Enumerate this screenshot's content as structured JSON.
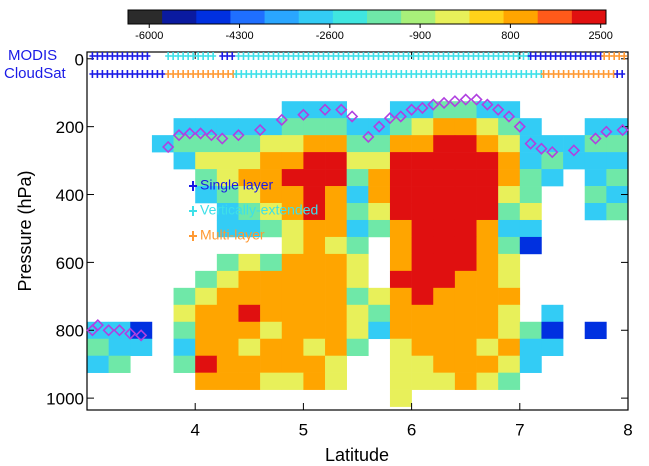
{
  "chart_data": {
    "type": "heatmap",
    "xlabel": "Latitude",
    "ylabel": "Pressure (hPa)",
    "xlim": [
      3,
      8
    ],
    "xticks": [
      4,
      5,
      6,
      7,
      8
    ],
    "ylim": [
      1035,
      -20
    ],
    "yticks": [
      0,
      200,
      400,
      600,
      800,
      1000
    ],
    "x": [
      3.1,
      3.3,
      3.5,
      3.7,
      3.9,
      4.1,
      4.3,
      4.5,
      4.7,
      4.9,
      5.1,
      5.3,
      5.5,
      5.7,
      5.9,
      6.1,
      6.3,
      6.5,
      6.7,
      6.9,
      7.1,
      7.3,
      7.5,
      7.7,
      7.9
    ],
    "y": [
      100,
      150,
      200,
      250,
      300,
      350,
      400,
      450,
      500,
      550,
      600,
      650,
      700,
      750,
      800,
      850,
      900,
      950,
      1000
    ],
    "z": [
      [
        null,
        null,
        null,
        null,
        null,
        null,
        null,
        null,
        null,
        null,
        null,
        null,
        null,
        null,
        null,
        null,
        null,
        null,
        null,
        null,
        null,
        null,
        null,
        null,
        null
      ],
      [
        null,
        null,
        null,
        null,
        null,
        null,
        null,
        null,
        null,
        -2800,
        -2800,
        -2800,
        null,
        null,
        -2800,
        -2800,
        -1600,
        -1600,
        -2800,
        -2800,
        null,
        null,
        null,
        null,
        null
      ],
      [
        null,
        null,
        null,
        null,
        -2800,
        -2800,
        -2800,
        -2800,
        -2800,
        -1600,
        -1600,
        -1600,
        -2800,
        -2800,
        -1600,
        -400,
        900,
        900,
        -400,
        -1600,
        -2800,
        null,
        null,
        -2800,
        -2800
      ],
      [
        null,
        null,
        null,
        -2800,
        -1600,
        -1600,
        -1600,
        -1600,
        -400,
        -400,
        900,
        900,
        -1600,
        -1600,
        900,
        900,
        2000,
        2000,
        900,
        -400,
        -2800,
        -2800,
        -2800,
        -1600,
        -1600
      ],
      [
        null,
        null,
        null,
        null,
        -2800,
        -400,
        -400,
        -400,
        900,
        900,
        2000,
        2000,
        -400,
        -400,
        2000,
        2000,
        2000,
        2000,
        2000,
        900,
        -2800,
        -1600,
        -2800,
        -2800,
        -2800
      ],
      [
        null,
        null,
        null,
        null,
        null,
        -1600,
        -400,
        900,
        900,
        2000,
        2000,
        2000,
        -1600,
        900,
        2000,
        2000,
        2000,
        2000,
        2000,
        900,
        -1600,
        -2800,
        null,
        -2800,
        -1600
      ],
      [
        null,
        null,
        null,
        null,
        null,
        -2800,
        -1600,
        -400,
        900,
        900,
        2000,
        900,
        -2800,
        900,
        2000,
        2000,
        2000,
        2000,
        2000,
        -400,
        -1600,
        null,
        null,
        -1600,
        -2800
      ],
      [
        null,
        null,
        null,
        null,
        null,
        null,
        -2800,
        -1600,
        -400,
        900,
        2000,
        900,
        -1600,
        -400,
        2000,
        2000,
        2000,
        2000,
        2000,
        -1600,
        -400,
        null,
        null,
        -2800,
        -1600
      ],
      [
        null,
        null,
        null,
        null,
        null,
        null,
        -2800,
        -2800,
        -1600,
        -400,
        900,
        900,
        -2800,
        -1600,
        900,
        2000,
        2000,
        2000,
        900,
        -2800,
        -2800,
        null,
        null,
        null,
        null
      ],
      [
        null,
        null,
        null,
        null,
        null,
        null,
        null,
        null,
        null,
        -400,
        900,
        -400,
        -1600,
        null,
        900,
        2000,
        2000,
        2000,
        900,
        -1600,
        -4500,
        null,
        null,
        null,
        null
      ],
      [
        null,
        null,
        null,
        null,
        null,
        null,
        -1600,
        -400,
        -1600,
        900,
        900,
        900,
        -400,
        null,
        900,
        2000,
        2000,
        2000,
        900,
        -400,
        null,
        null,
        null,
        null,
        null
      ],
      [
        null,
        null,
        null,
        null,
        null,
        -1600,
        -400,
        900,
        900,
        900,
        900,
        900,
        -400,
        null,
        2000,
        2000,
        2000,
        900,
        900,
        -400,
        null,
        null,
        null,
        null,
        null
      ],
      [
        null,
        null,
        null,
        null,
        -1600,
        -400,
        900,
        900,
        900,
        900,
        900,
        900,
        -1600,
        -400,
        900,
        2000,
        900,
        900,
        900,
        900,
        null,
        null,
        null,
        null,
        null
      ],
      [
        null,
        null,
        null,
        null,
        -400,
        900,
        900,
        2000,
        900,
        900,
        900,
        900,
        -400,
        -1600,
        900,
        900,
        900,
        900,
        900,
        -400,
        null,
        -2800,
        null,
        null,
        null
      ],
      [
        -2800,
        -2800,
        -4500,
        null,
        -1600,
        900,
        900,
        900,
        -400,
        900,
        900,
        900,
        -400,
        -2800,
        900,
        900,
        900,
        900,
        900,
        -400,
        -1600,
        -4500,
        null,
        -4500,
        null
      ],
      [
        -1600,
        -2800,
        -2800,
        null,
        -2800,
        900,
        900,
        -400,
        900,
        900,
        -400,
        900,
        -1600,
        null,
        -400,
        900,
        900,
        900,
        -400,
        900,
        -2800,
        -2800,
        null,
        null,
        null
      ],
      [
        -2800,
        -1600,
        null,
        null,
        -1600,
        2000,
        900,
        900,
        900,
        900,
        900,
        -400,
        null,
        null,
        -400,
        -400,
        900,
        900,
        900,
        -400,
        -2800,
        null,
        null,
        null,
        null
      ],
      [
        null,
        null,
        null,
        null,
        null,
        900,
        900,
        900,
        -400,
        -400,
        900,
        -400,
        null,
        null,
        -400,
        -400,
        -400,
        900,
        -400,
        -1600,
        null,
        null,
        null,
        null,
        null
      ],
      [
        null,
        null,
        null,
        null,
        null,
        null,
        null,
        null,
        null,
        null,
        null,
        null,
        null,
        null,
        -400,
        null,
        null,
        null,
        null,
        null,
        null,
        null,
        null,
        null,
        null
      ]
    ],
    "colorbar": {
      "clim": [
        -6400,
        2600
      ],
      "ticks": [
        -6000,
        -4300,
        -2600,
        -900,
        800,
        2500
      ],
      "colors": [
        "#2b2b2b",
        "#0a1aa0",
        "#0030e0",
        "#1f6fff",
        "#2aa6ff",
        "#33ccf5",
        "#40e6e0",
        "#6fe8a8",
        "#a8f07a",
        "#e8f05a",
        "#ffd21a",
        "#ffa500",
        "#ff5a1a",
        "#e01010"
      ]
    },
    "layers": [
      {
        "name": "Single layer",
        "color": "#1a1ae6"
      },
      {
        "name": "Vertically-extended",
        "color": "#3ee0e8"
      },
      {
        "name": "Multi-layer",
        "color": "#ff9933"
      }
    ],
    "rows": [
      {
        "name": "MODIS",
        "segments": [
          {
            "from": 3.05,
            "to": 3.6,
            "layer": "Single layer"
          },
          {
            "from": 3.75,
            "to": 4.2,
            "layer": "Vertically-extended"
          },
          {
            "from": 4.25,
            "to": 4.35,
            "layer": "Single layer"
          },
          {
            "from": 4.4,
            "to": 7.1,
            "layer": "Vertically-extended"
          },
          {
            "from": 7.1,
            "to": 7.75,
            "layer": "Single layer"
          },
          {
            "from": 7.78,
            "to": 7.98,
            "layer": "Multi-layer"
          }
        ]
      },
      {
        "name": "CloudSat",
        "segments": [
          {
            "from": 3.05,
            "to": 3.7,
            "layer": "Single layer"
          },
          {
            "from": 3.75,
            "to": 4.35,
            "layer": "Multi-layer"
          },
          {
            "from": 4.38,
            "to": 7.2,
            "layer": "Vertically-extended"
          },
          {
            "from": 7.22,
            "to": 7.88,
            "layer": "Multi-layer"
          },
          {
            "from": 7.9,
            "to": 7.98,
            "layer": "Single layer"
          }
        ]
      }
    ],
    "cloud_top": {
      "color": "#b040e0",
      "x": [
        3.05,
        3.1,
        3.2,
        3.3,
        3.4,
        3.5,
        3.75,
        3.85,
        3.95,
        4.05,
        4.15,
        4.25,
        4.4,
        4.6,
        4.8,
        5.0,
        5.2,
        5.35,
        5.45,
        5.6,
        5.7,
        5.8,
        5.9,
        6.0,
        6.1,
        6.2,
        6.3,
        6.4,
        6.5,
        6.6,
        6.7,
        6.8,
        6.9,
        7.0,
        7.1,
        7.2,
        7.3,
        7.5,
        7.7,
        7.8,
        7.95
      ],
      "y": [
        800,
        785,
        800,
        800,
        810,
        815,
        260,
        225,
        220,
        220,
        225,
        235,
        225,
        210,
        180,
        165,
        150,
        150,
        170,
        230,
        200,
        175,
        170,
        150,
        145,
        135,
        130,
        125,
        120,
        120,
        135,
        150,
        170,
        200,
        250,
        265,
        275,
        270,
        235,
        215,
        210
      ]
    }
  }
}
